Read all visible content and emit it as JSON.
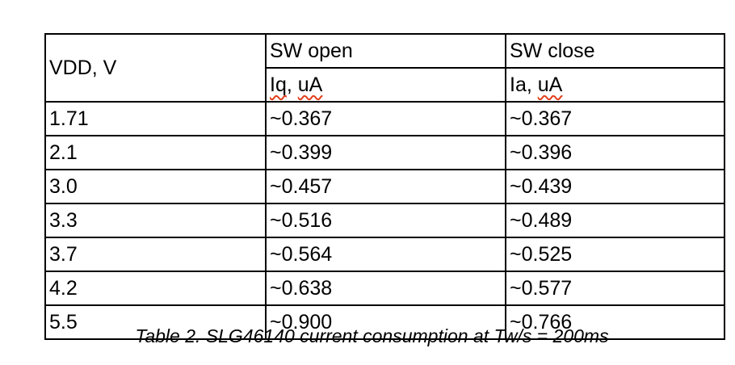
{
  "table": {
    "header": {
      "vdd": "VDD, V",
      "sw_open": "SW open",
      "sw_close": "SW close",
      "sub_open": {
        "word1": "Iq",
        "sep": ", ",
        "word2": "uA"
      },
      "sub_close": {
        "word1": "Ia",
        "sep": ", ",
        "word2": "uA"
      }
    },
    "rows": [
      {
        "vdd": "1.71",
        "iq": "~0.367",
        "ia": "~0.367"
      },
      {
        "vdd": "2.1",
        "iq": "~0.399",
        "ia": "~0.396"
      },
      {
        "vdd": "3.0",
        "iq": "~0.457",
        "ia": "~0.439"
      },
      {
        "vdd": "3.3",
        "iq": "~0.516",
        "ia": "~0.489"
      },
      {
        "vdd": "3.7",
        "iq": "~0.564",
        "ia": "~0.525"
      },
      {
        "vdd": "4.2",
        "iq": "~0.638",
        "ia": "~0.577"
      },
      {
        "vdd": "5.5",
        "iq": "~0.900",
        "ia": "~0.766"
      }
    ]
  },
  "caption": "Table 2. SLG46140 current consumption at Tw/s = 200ms",
  "colors": {
    "text": "#000000",
    "border": "#000000",
    "squiggle": "#e2401b",
    "background": "#ffffff"
  }
}
